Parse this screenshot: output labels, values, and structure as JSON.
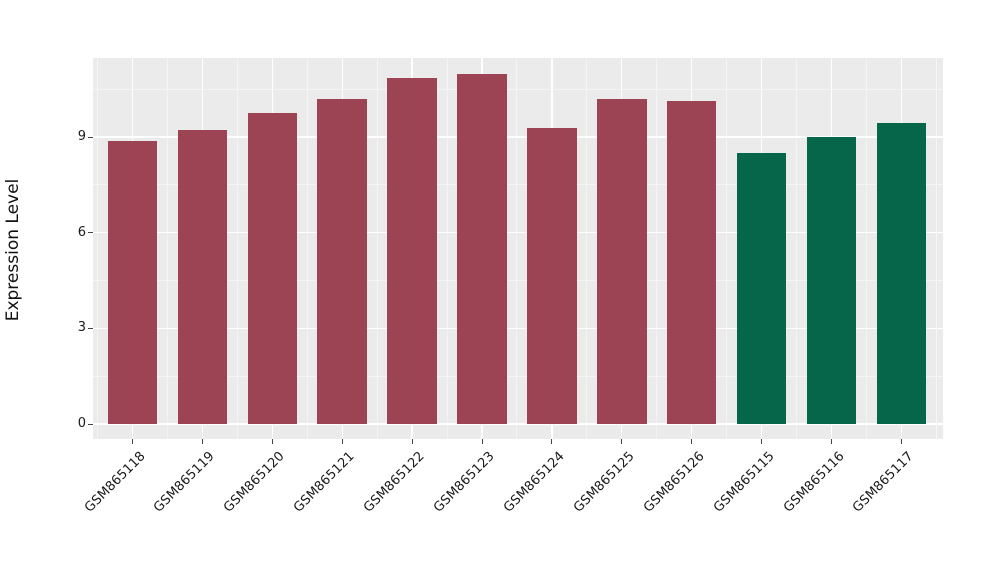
{
  "figure": {
    "background": "#FFFFFF",
    "text_color": "#1a1a1a"
  },
  "chart_data": {
    "type": "bar",
    "title": "",
    "xlabel": "",
    "ylabel": "Expression Level",
    "categories": [
      "GSM865118",
      "GSM865119",
      "GSM865120",
      "GSM865121",
      "GSM865122",
      "GSM865123",
      "GSM865124",
      "GSM865125",
      "GSM865126",
      "GSM865115",
      "GSM865116",
      "GSM865117"
    ],
    "values": [
      8.87,
      9.22,
      9.75,
      10.18,
      10.86,
      10.99,
      9.29,
      10.2,
      10.13,
      8.49,
      9.0,
      9.43
    ],
    "bar_colors": [
      "#9C4453",
      "#9C4453",
      "#9C4453",
      "#9C4453",
      "#9C4453",
      "#9C4453",
      "#9C4453",
      "#9C4453",
      "#9C4453",
      "#066649",
      "#066649",
      "#066649"
    ],
    "group_colors": {
      "red_group": "#9C4453",
      "green_group": "#066649"
    },
    "yticks": [
      0,
      3,
      6,
      9
    ],
    "minor_yticks": [
      1.5,
      4.5,
      7.5,
      10.5
    ],
    "ylim": [
      -0.47,
      11.48
    ],
    "x_tick_rotation": 45,
    "panel_background": "#EBEBEB",
    "grid_major_color": "#FFFFFF",
    "grid_minor_color": "#F5F5F5",
    "grid": true,
    "legend": false
  }
}
